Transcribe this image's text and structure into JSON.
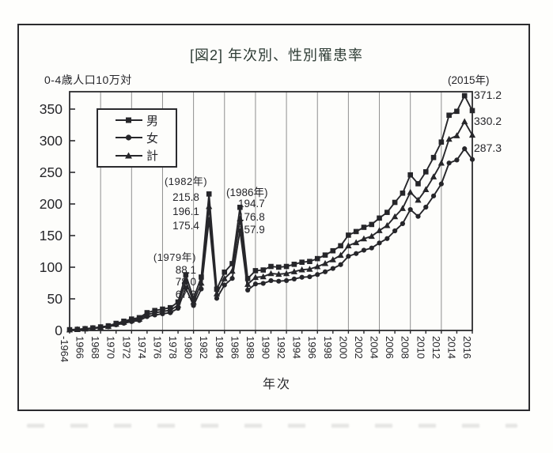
{
  "title": "[図2] 年次別、性別罹患率",
  "y_axis": {
    "unit_label": "0-4歳人口10万対",
    "ticks": [
      0,
      50,
      100,
      150,
      200,
      250,
      300,
      350
    ]
  },
  "x_axis": {
    "title": "年次",
    "tick_labels": [
      "-1964",
      "1966",
      "1968",
      "1970",
      "1972",
      "1974",
      "1976",
      "1978",
      "1980",
      "1982",
      "1984",
      "1986",
      "1988",
      "1990",
      "1992",
      "1994",
      "1996",
      "1998",
      "2000",
      "2002",
      "2004",
      "2006",
      "2008",
      "2010",
      "2012",
      "2014",
      "2016"
    ]
  },
  "legend": {
    "items": [
      {
        "label": "男",
        "marker": "square-marker-icon"
      },
      {
        "label": "女",
        "marker": "circle-marker-icon"
      },
      {
        "label": "計",
        "marker": "triangle-marker-icon"
      }
    ]
  },
  "annotations": [
    {
      "year_label": "(1979年)",
      "values": [
        "88.1",
        "78.0",
        "67.3"
      ]
    },
    {
      "year_label": "(1982年)",
      "values": [
        "215.8",
        "196.1",
        "175.4"
      ]
    },
    {
      "year_label": "(1986年)",
      "values": [
        "194.7",
        "176.8",
        "157.9"
      ]
    },
    {
      "year_label": "(2015年)",
      "values": [
        "371.2",
        "330.2",
        "287.3"
      ]
    }
  ],
  "colors": {
    "ink": "#26262a",
    "gridline": "#8f8f8f",
    "frame": "#2b2b2e",
    "background": "#fdfdfb"
  },
  "chart_data": {
    "type": "line",
    "title": "[図2] 年次別、性別罹患率",
    "xlabel": "年次",
    "ylabel": "0-4歳人口10万対",
    "ylim": [
      0,
      380
    ],
    "ytick_step": 50,
    "grid": "vertical gridlines every 4 years",
    "legend_position": "upper left",
    "years": [
      1964,
      1965,
      1966,
      1967,
      1968,
      1969,
      1970,
      1971,
      1972,
      1973,
      1974,
      1975,
      1976,
      1977,
      1978,
      1979,
      1980,
      1981,
      1982,
      1983,
      1984,
      1985,
      1986,
      1987,
      1988,
      1989,
      1990,
      1991,
      1992,
      1993,
      1994,
      1995,
      1996,
      1997,
      1998,
      1999,
      2000,
      2001,
      2002,
      2003,
      2004,
      2005,
      2006,
      2007,
      2008,
      2009,
      2010,
      2011,
      2012,
      2013,
      2014,
      2015,
      2016
    ],
    "series": [
      {
        "name": "男",
        "marker": "square",
        "values": [
          1.2,
          1.8,
          2.8,
          4.0,
          5.6,
          7.3,
          11.2,
          14.6,
          18.0,
          20.2,
          28.1,
          31.5,
          33.7,
          36.0,
          45.0,
          88.1,
          50.6,
          84.4,
          215.8,
          65.2,
          92.2,
          105.7,
          194.7,
          82.1,
          94.5,
          95.6,
          101.2,
          100.1,
          101.2,
          104.6,
          107.9,
          109.1,
          113.6,
          119.2,
          126.0,
          133.9,
          150.7,
          156.4,
          163.1,
          167.6,
          177.7,
          186.7,
          202.5,
          217.1,
          246.0,
          232.0,
          250.8,
          273.5,
          297.9,
          340.3,
          346.5,
          371.2,
          347.6
        ]
      },
      {
        "name": "女",
        "marker": "circle",
        "values": [
          0.9,
          1.4,
          2.2,
          3.0,
          4.4,
          5.7,
          8.8,
          11.4,
          14.0,
          15.8,
          21.9,
          24.5,
          26.3,
          28.0,
          35.0,
          67.3,
          39.4,
          65.6,
          175.4,
          50.8,
          71.8,
          82.3,
          157.9,
          63.9,
          73.5,
          74.4,
          78.8,
          77.9,
          78.8,
          81.4,
          84.1,
          84.9,
          88.4,
          92.8,
          98.0,
          104.1,
          117.3,
          121.6,
          126.9,
          130.4,
          138.3,
          145.3,
          157.5,
          168.9,
          191.2,
          180.4,
          195.0,
          212.7,
          231.7,
          264.7,
          269.5,
          287.3,
          270.4
        ]
      },
      {
        "name": "計",
        "marker": "triangle",
        "values": [
          1.1,
          1.6,
          2.5,
          3.5,
          5.0,
          6.5,
          10.0,
          13.0,
          16.0,
          18.0,
          25.0,
          28.0,
          30.0,
          32.0,
          40.0,
          78.0,
          45.0,
          75.0,
          196.1,
          58.0,
          82.0,
          94.0,
          176.8,
          73.0,
          84.0,
          85.0,
          90.0,
          89.0,
          90.0,
          93.0,
          96.0,
          97.0,
          101.0,
          106.0,
          112.0,
          119.0,
          134.0,
          139.0,
          145.0,
          149.0,
          158.0,
          166.0,
          180.0,
          193.0,
          218.6,
          206.2,
          222.9,
          243.1,
          264.8,
          302.5,
          308.0,
          330.2,
          309.0
        ]
      }
    ],
    "annotated_peaks": [
      {
        "year": 1979,
        "male": 88.1,
        "total": 78.0,
        "female": 67.3
      },
      {
        "year": 1982,
        "male": 215.8,
        "total": 196.1,
        "female": 175.4
      },
      {
        "year": 1986,
        "male": 194.7,
        "total": 176.8,
        "female": 157.9
      },
      {
        "year": 2015,
        "male": 371.2,
        "total": 330.2,
        "female": 287.3
      }
    ]
  }
}
